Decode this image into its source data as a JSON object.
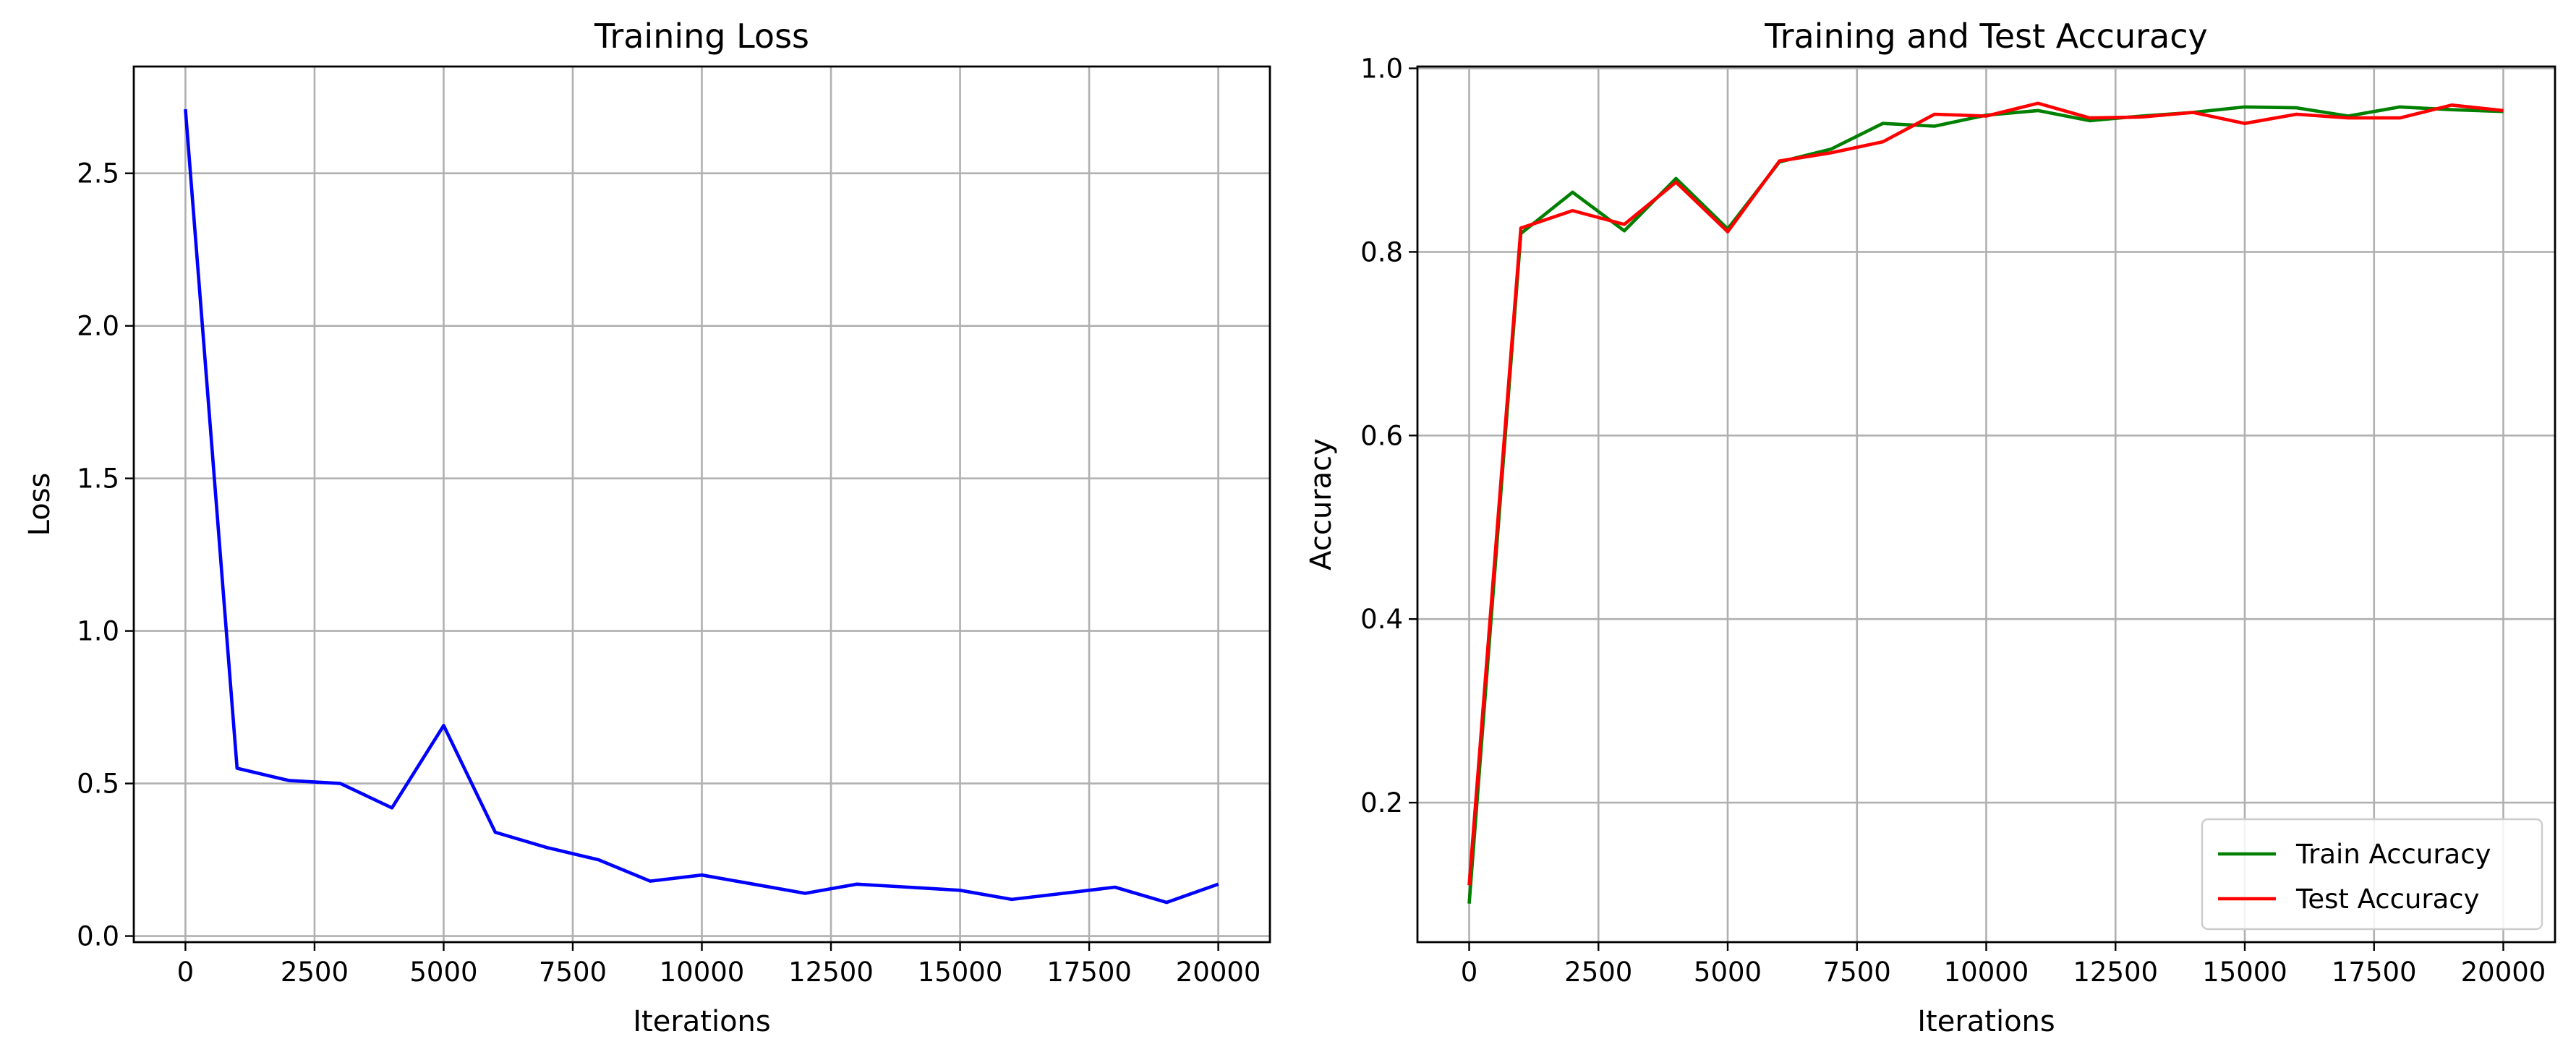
{
  "chart_data": [
    {
      "type": "line",
      "title": "Training Loss",
      "xlabel": "Iterations",
      "ylabel": "Loss",
      "xlim": [
        -1000,
        21000
      ],
      "ylim": [
        -0.02,
        2.85
      ],
      "xticks": [
        0,
        2500,
        5000,
        7500,
        10000,
        12500,
        15000,
        17500,
        20000
      ],
      "yticks": [
        0.0,
        0.5,
        1.0,
        1.5,
        2.0,
        2.5
      ],
      "ytick_labels": [
        "0.0",
        "0.5",
        "1.0",
        "1.5",
        "2.0",
        "2.5"
      ],
      "grid": true,
      "x": [
        0,
        1000,
        2000,
        3000,
        4000,
        5000,
        6000,
        7000,
        8000,
        9000,
        10000,
        11000,
        12000,
        13000,
        14000,
        15000,
        16000,
        17000,
        18000,
        19000,
        20000
      ],
      "series": [
        {
          "name": "",
          "color": "#0000ff",
          "values": [
            2.71,
            0.55,
            0.51,
            0.5,
            0.42,
            0.69,
            0.34,
            0.29,
            0.25,
            0.18,
            0.2,
            0.17,
            0.14,
            0.17,
            0.16,
            0.15,
            0.12,
            0.14,
            0.16,
            0.11,
            0.17
          ]
        }
      ]
    },
    {
      "type": "line",
      "title": "Training and Test Accuracy",
      "xlabel": "Iterations",
      "ylabel": "Accuracy",
      "xlim": [
        -1000,
        21000
      ],
      "ylim": [
        0.048,
        1.002
      ],
      "xticks": [
        0,
        2500,
        5000,
        7500,
        10000,
        12500,
        15000,
        17500,
        20000
      ],
      "yticks": [
        0.2,
        0.4,
        0.6,
        0.8,
        1.0
      ],
      "ytick_labels": [
        "0.2",
        "0.4",
        "0.6",
        "0.8",
        "1.0"
      ],
      "grid": true,
      "legend_position": "lower-right",
      "x": [
        0,
        1000,
        2000,
        3000,
        4000,
        5000,
        6000,
        7000,
        8000,
        9000,
        10000,
        11000,
        12000,
        13000,
        14000,
        15000,
        16000,
        17000,
        18000,
        19000,
        20000
      ],
      "series": [
        {
          "name": "Train Accuracy",
          "color": "#008000",
          "values": [
            0.09,
            0.82,
            0.865,
            0.823,
            0.88,
            0.825,
            0.898,
            0.912,
            0.94,
            0.937,
            0.949,
            0.954,
            0.943,
            0.948,
            0.952,
            0.958,
            0.957,
            0.948,
            0.958,
            0.955,
            0.953
          ]
        },
        {
          "name": "Test Accuracy",
          "color": "#ff0000",
          "values": [
            0.11,
            0.826,
            0.845,
            0.83,
            0.876,
            0.822,
            0.899,
            0.908,
            0.92,
            0.95,
            0.948,
            0.962,
            0.946,
            0.947,
            0.952,
            0.94,
            0.95,
            0.946,
            0.946,
            0.96,
            0.954
          ]
        }
      ]
    }
  ]
}
